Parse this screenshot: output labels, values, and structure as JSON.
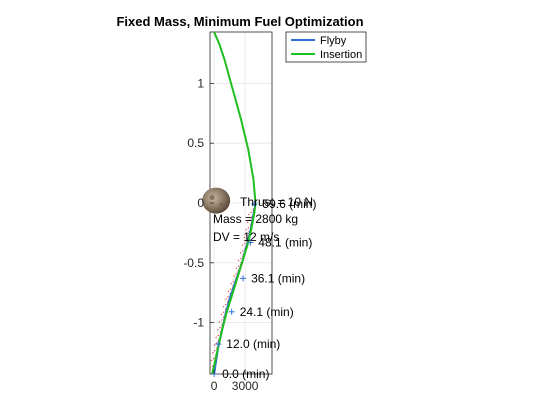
{
  "chart_data": {
    "type": "line",
    "title": "Fixed Mass, Minimum Fuel Optimization",
    "xlim": [
      -400,
      5600
    ],
    "ylim": [
      -1.43,
      1.43
    ],
    "grid": true,
    "x_ticks": [
      0,
      3000
    ],
    "x_tick_labels": [
      "0",
      "3000"
    ],
    "y_ticks": [
      1,
      0.5,
      0,
      -0.5,
      -1
    ],
    "y_tick_labels": [
      "1",
      "0.5",
      "0",
      "-0.5",
      "-1"
    ],
    "legend": {
      "placement": "top-right",
      "entries": [
        "Flyby",
        "Insertion"
      ]
    },
    "series": [
      {
        "name": "Flyby",
        "color": "#2d72d2",
        "x": [
          0,
          400,
          800,
          1100,
          1500,
          2100,
          2700,
          3200,
          3600,
          3900
        ],
        "y": [
          -1.43,
          -1.2,
          -1.05,
          -0.93,
          -0.8,
          -0.65,
          -0.5,
          -0.34,
          -0.2,
          -0.05
        ]
      },
      {
        "name": "Insertion",
        "color": "#1fbf1f",
        "x": [
          -200,
          0,
          400,
          800,
          1200,
          1700,
          2200,
          2700,
          3200,
          3600,
          3900,
          4000,
          3800,
          3300,
          2600,
          1800,
          1000,
          500,
          0
        ],
        "y": [
          -1.43,
          -1.36,
          -1.2,
          -1.05,
          -0.92,
          -0.78,
          -0.64,
          -0.5,
          -0.36,
          -0.22,
          -0.08,
          0.0,
          0.2,
          0.45,
          0.7,
          0.95,
          1.2,
          1.33,
          1.43
        ]
      }
    ],
    "markers": {
      "symbol": "+",
      "color": "#2d72d2",
      "points": [
        {
          "x": 0,
          "y": -1.43,
          "label": "0.0 (min)"
        },
        {
          "x": 400,
          "y": -1.18,
          "label": "12.0 (min)"
        },
        {
          "x": 1700,
          "y": -0.91,
          "label": "24.1 (min)"
        },
        {
          "x": 2800,
          "y": -0.63,
          "label": "36.1 (min)"
        },
        {
          "x": 3500,
          "y": -0.33,
          "label": "48.1 (min)"
        },
        {
          "x": 3900,
          "y": -0.01,
          "label": "59.6 (min)"
        }
      ]
    },
    "thrust_arrows": {
      "color": "#e8434c",
      "y_from": -1.4,
      "y_to": -0.05
    },
    "annotations": [
      "Thrust = 10 N",
      "Mass = 2800 kg",
      "DV =  12 m/s"
    ],
    "image_marker": {
      "name": "asteroid",
      "x": 0,
      "y": 0.02
    }
  }
}
